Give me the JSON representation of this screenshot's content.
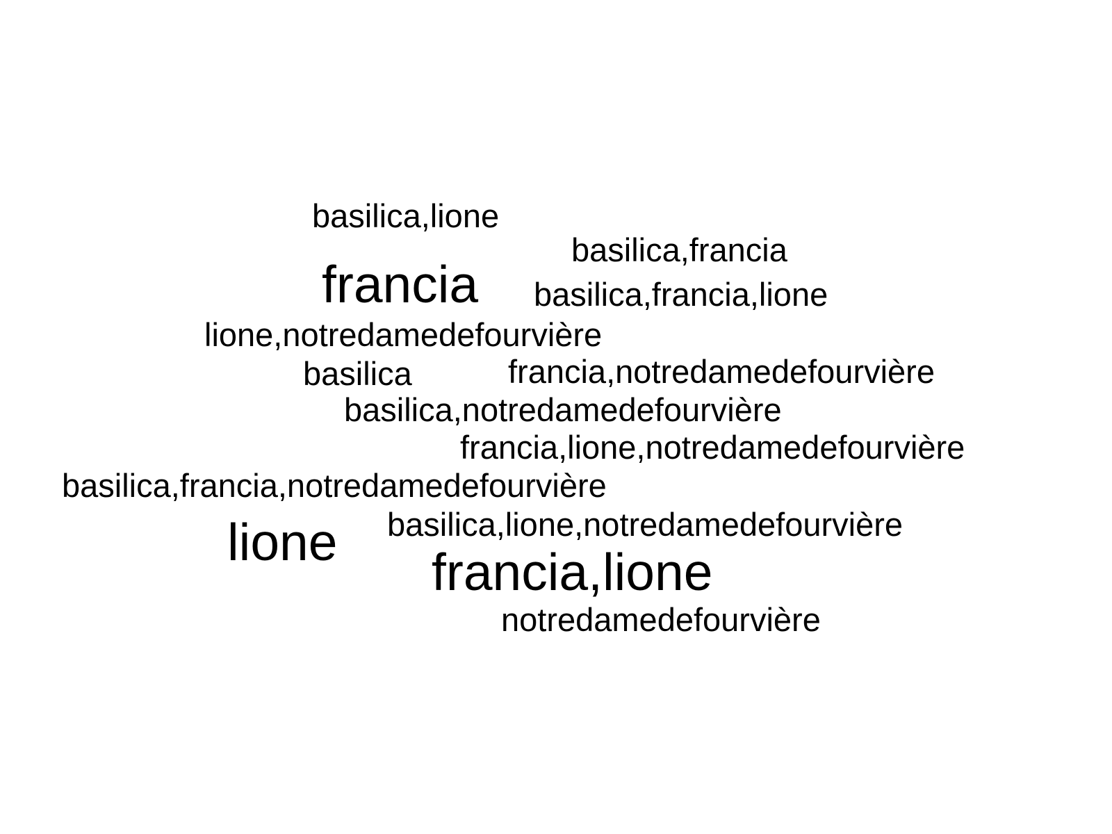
{
  "wordcloud": {
    "words": [
      {
        "text": "basilica,lione",
        "size": "small"
      },
      {
        "text": "basilica,francia",
        "size": "small"
      },
      {
        "text": "francia",
        "size": "large"
      },
      {
        "text": "basilica,francia,lione",
        "size": "small"
      },
      {
        "text": "lione,notredamedefourvière",
        "size": "small"
      },
      {
        "text": "basilica",
        "size": "small"
      },
      {
        "text": "francia,notredamedefourvière",
        "size": "small"
      },
      {
        "text": "basilica,notredamedefourvière",
        "size": "small"
      },
      {
        "text": "francia,lione,notredamedefourvière",
        "size": "small"
      },
      {
        "text": "basilica,francia,notredamedefourvière",
        "size": "small"
      },
      {
        "text": "lione",
        "size": "large"
      },
      {
        "text": "basilica,lione,notredamedefourvière",
        "size": "small"
      },
      {
        "text": "francia,lione",
        "size": "large"
      },
      {
        "text": "notredamedefourvière",
        "size": "small"
      }
    ],
    "text_color": "#000000",
    "background": "#ffffff"
  }
}
